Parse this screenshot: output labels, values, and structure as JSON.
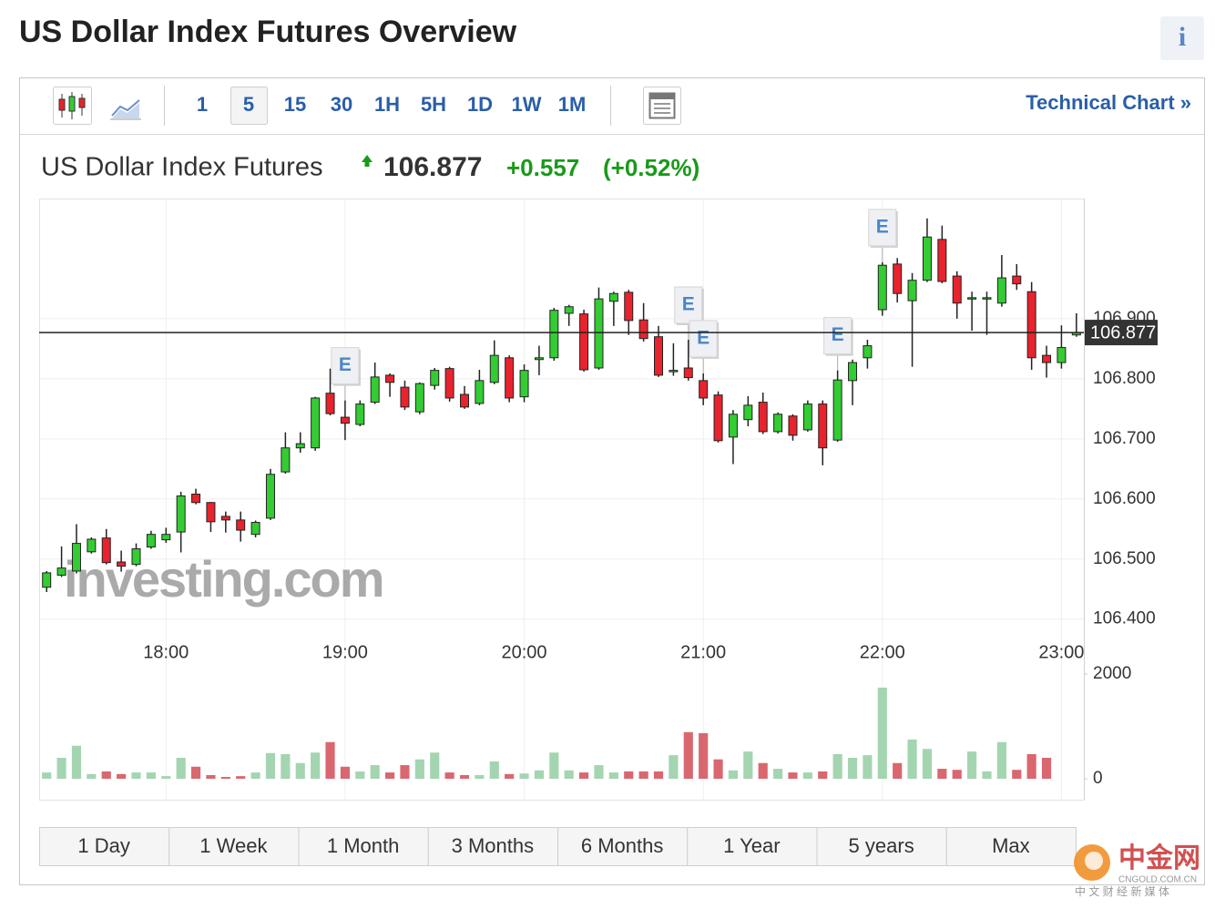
{
  "header": {
    "title": "US Dollar Index Futures Overview",
    "info": "i"
  },
  "toolbar": {
    "intervals": [
      "1",
      "5",
      "15",
      "30",
      "1H",
      "5H",
      "1D",
      "1W",
      "1M"
    ],
    "technical_chart": "Technical Chart »"
  },
  "quote": {
    "name": "US Dollar Index Futures",
    "change": "+0.557",
    "change_percent": "(+0.52%)"
  },
  "chart_data": {
    "type": "candlestick",
    "categories": [
      null,
      null,
      null,
      null,
      null,
      null,
      null,
      null,
      "18:00",
      null,
      null,
      null,
      null,
      null,
      null,
      null,
      null,
      null,
      null,
      null,
      "19:00",
      null,
      null,
      null,
      null,
      null,
      null,
      null,
      null,
      null,
      null,
      null,
      "20:00",
      null,
      null,
      null,
      null,
      null,
      null,
      null,
      null,
      null,
      null,
      null,
      "21:00",
      null,
      null,
      null,
      null,
      null,
      null,
      null,
      null,
      null,
      null,
      null,
      "22:00",
      null,
      null,
      null,
      null,
      null,
      null,
      null,
      null,
      null,
      null,
      null,
      "23:00",
      null
    ],
    "open": [
      106.453,
      106.473,
      106.48,
      106.512,
      106.535,
      106.495,
      106.491,
      106.52,
      106.532,
      106.545,
      106.608,
      106.594,
      106.571,
      106.565,
      106.541,
      106.568,
      106.645,
      106.685,
      106.685,
      106.776,
      106.736,
      106.724,
      106.761,
      106.806,
      106.786,
      106.745,
      106.789,
      106.817,
      106.774,
      106.759,
      106.794,
      106.835,
      106.77,
      106.832,
      106.835,
      106.909,
      106.908,
      106.818,
      106.929,
      106.944,
      106.898,
      106.87,
      106.814,
      106.818,
      106.797,
      106.773,
      106.703,
      106.732,
      106.761,
      106.712,
      106.738,
      106.715,
      106.758,
      106.698,
      106.797,
      106.835,
      106.915,
      106.991,
      106.93,
      106.964,
      107.032,
      106.971,
      106.935,
      106.935,
      106.926,
      106.971,
      106.945,
      106.839,
      106.827,
      106.873
    ],
    "high": [
      106.48,
      106.521,
      106.558,
      106.536,
      106.55,
      106.514,
      106.526,
      106.547,
      106.552,
      106.612,
      106.617,
      106.595,
      106.579,
      106.579,
      106.564,
      106.65,
      106.711,
      106.711,
      106.77,
      106.817,
      106.764,
      106.764,
      106.827,
      106.809,
      106.797,
      106.794,
      106.818,
      106.82,
      106.788,
      106.815,
      106.864,
      106.839,
      106.824,
      106.855,
      106.918,
      106.923,
      106.915,
      106.952,
      106.945,
      106.948,
      106.926,
      106.888,
      106.859,
      106.865,
      106.809,
      106.779,
      106.748,
      106.771,
      106.777,
      106.744,
      106.741,
      106.764,
      106.764,
      106.814,
      106.832,
      106.865,
      106.994,
      107.001,
      106.976,
      107.067,
      107.055,
      106.979,
      106.945,
      106.945,
      107.006,
      106.991,
      106.961,
      106.855,
      106.889,
      106.909
    ],
    "low": [
      106.445,
      106.47,
      106.476,
      106.509,
      106.491,
      106.479,
      106.488,
      106.517,
      106.527,
      106.511,
      106.591,
      106.545,
      106.544,
      106.529,
      106.536,
      106.565,
      106.642,
      106.677,
      106.68,
      106.739,
      106.698,
      106.721,
      106.758,
      106.77,
      106.748,
      106.741,
      106.782,
      106.762,
      106.75,
      106.756,
      106.791,
      106.761,
      106.761,
      106.806,
      106.83,
      106.888,
      106.812,
      106.815,
      106.888,
      106.873,
      106.862,
      106.803,
      106.805,
      106.797,
      106.756,
      106.694,
      106.658,
      106.721,
      106.708,
      106.709,
      106.697,
      106.712,
      106.656,
      106.695,
      106.756,
      106.817,
      106.905,
      106.927,
      106.82,
      106.961,
      106.959,
      106.9,
      106.88,
      106.873,
      106.92,
      106.948,
      106.815,
      106.802,
      106.817,
      106.87
    ],
    "close": [
      106.477,
      106.485,
      106.526,
      106.533,
      106.494,
      106.488,
      106.517,
      106.541,
      106.541,
      106.605,
      106.594,
      106.562,
      106.565,
      106.548,
      106.561,
      106.641,
      106.685,
      106.692,
      106.768,
      106.742,
      106.726,
      106.758,
      106.803,
      106.794,
      106.753,
      106.792,
      106.814,
      106.768,
      106.753,
      106.797,
      106.839,
      106.768,
      106.814,
      106.835,
      106.914,
      106.92,
      106.815,
      106.933,
      106.942,
      106.897,
      106.867,
      106.806,
      106.814,
      106.802,
      106.768,
      106.697,
      106.741,
      106.756,
      106.712,
      106.741,
      106.706,
      106.758,
      106.685,
      106.798,
      106.827,
      106.855,
      106.989,
      106.942,
      106.964,
      107.036,
      106.962,
      106.926,
      106.935,
      106.935,
      106.968,
      106.958,
      106.835,
      106.827,
      106.852,
      106.877
    ],
    "last_price": 106.877,
    "ylim": [
      106.395,
      107.1
    ],
    "yticks": [
      {
        "value": 106.4,
        "label": "106.400"
      },
      {
        "value": 106.5,
        "label": "106.500"
      },
      {
        "value": 106.6,
        "label": "106.600"
      },
      {
        "value": 106.7,
        "label": "106.700"
      },
      {
        "value": 106.8,
        "label": "106.800"
      },
      {
        "value": 106.9,
        "label": "106.900"
      }
    ],
    "grid": true,
    "up_color": "#33cc33",
    "down_color": "#e8232d",
    "event_labels": [
      null,
      null,
      null,
      null,
      null,
      null,
      null,
      null,
      null,
      null,
      null,
      null,
      null,
      null,
      null,
      null,
      null,
      null,
      null,
      null,
      "E",
      null,
      null,
      null,
      null,
      null,
      null,
      null,
      null,
      null,
      null,
      null,
      null,
      null,
      null,
      null,
      null,
      null,
      null,
      null,
      null,
      null,
      null,
      "E",
      "E",
      null,
      null,
      null,
      null,
      null,
      null,
      null,
      null,
      "E",
      null,
      null,
      "E",
      null,
      null,
      null,
      null,
      null,
      null,
      null,
      null,
      null,
      null,
      null,
      null,
      null
    ],
    "volume": [
      120,
      400,
      630,
      90,
      140,
      90,
      120,
      120,
      50,
      400,
      230,
      70,
      35,
      50,
      120,
      490,
      470,
      300,
      500,
      700,
      230,
      140,
      260,
      120,
      260,
      370,
      500,
      120,
      70,
      70,
      330,
      90,
      100,
      160,
      500,
      160,
      120,
      260,
      120,
      140,
      140,
      140,
      450,
      890,
      870,
      370,
      160,
      520,
      300,
      190,
      120,
      120,
      140,
      470,
      400,
      450,
      1740,
      300,
      750,
      570,
      190,
      170,
      520,
      140,
      700,
      170,
      470,
      400,
      null,
      null
    ],
    "volume_ylim": [
      0,
      2000
    ],
    "volume_yticks": [
      0,
      2000
    ],
    "volume_up_color": "#a3d5b1",
    "volume_down_color": "#d9676f"
  },
  "periods": [
    "1 Day",
    "1 Week",
    "1 Month",
    "3 Months",
    "6 Months",
    "1 Year",
    "5 years",
    "Max"
  ],
  "watermarks": {
    "investing": "investing.com",
    "cngold": "中金网",
    "cngold_url": "CNGOLD.COM.CN",
    "cngold_tagline": "中 文 财 经 新 媒 体"
  }
}
